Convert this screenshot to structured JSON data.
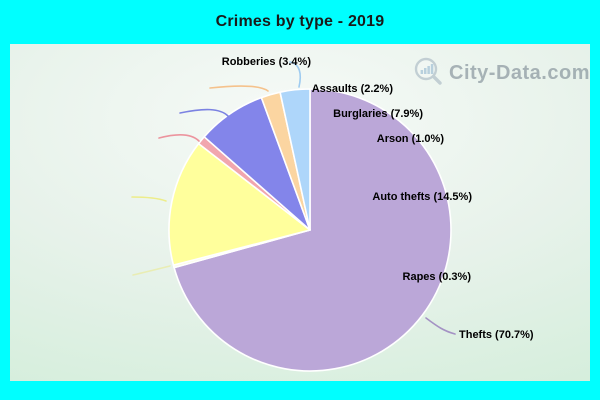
{
  "window": {
    "title": "Crimes by type - 2019"
  },
  "watermark": {
    "text": "City-Data.com",
    "icon": "magnifier-bar-chart-icon"
  },
  "theme": {
    "frame_color": "#00ffff",
    "plot_bg_center": "#f6faf7",
    "plot_bg_edge": "#cbecd4",
    "title_color": "#1a1a1a",
    "label_color": "#000000",
    "slice_stroke": "#ffffff",
    "watermark_color": "#6e7c88"
  },
  "chart_data": {
    "type": "pie",
    "title": "Crimes by type - 2019",
    "unit": "percent",
    "start_angle_deg": 0,
    "direction": "clockwise",
    "legend_position": "callout-labels",
    "slices": [
      {
        "label": "Thefts",
        "pct": 70.7,
        "display": "Thefts (70.7%)",
        "color": "#bba7d8",
        "line_color": "#a492c4"
      },
      {
        "label": "Rapes",
        "pct": 0.3,
        "display": "Rapes (0.3%)",
        "color": "#fbfce2",
        "line_color": "#e9edb4"
      },
      {
        "label": "Auto thefts",
        "pct": 14.5,
        "display": "Auto thefts (14.5%)",
        "color": "#ffff9c",
        "line_color": "#eded8a"
      },
      {
        "label": "Arson",
        "pct": 1.0,
        "display": "Arson (1.0%)",
        "color": "#f1a6ae",
        "line_color": "#ec949e"
      },
      {
        "label": "Burglaries",
        "pct": 7.9,
        "display": "Burglaries (7.9%)",
        "color": "#8385ea",
        "line_color": "#7b82e2"
      },
      {
        "label": "Assaults",
        "pct": 2.2,
        "display": "Assaults (2.2%)",
        "color": "#fbd5a1",
        "line_color": "#f5c28c"
      },
      {
        "label": "Robberies",
        "pct": 3.4,
        "display": "Robberies (3.4%)",
        "color": "#aed6fa",
        "line_color": "#9ecbf0"
      }
    ]
  }
}
